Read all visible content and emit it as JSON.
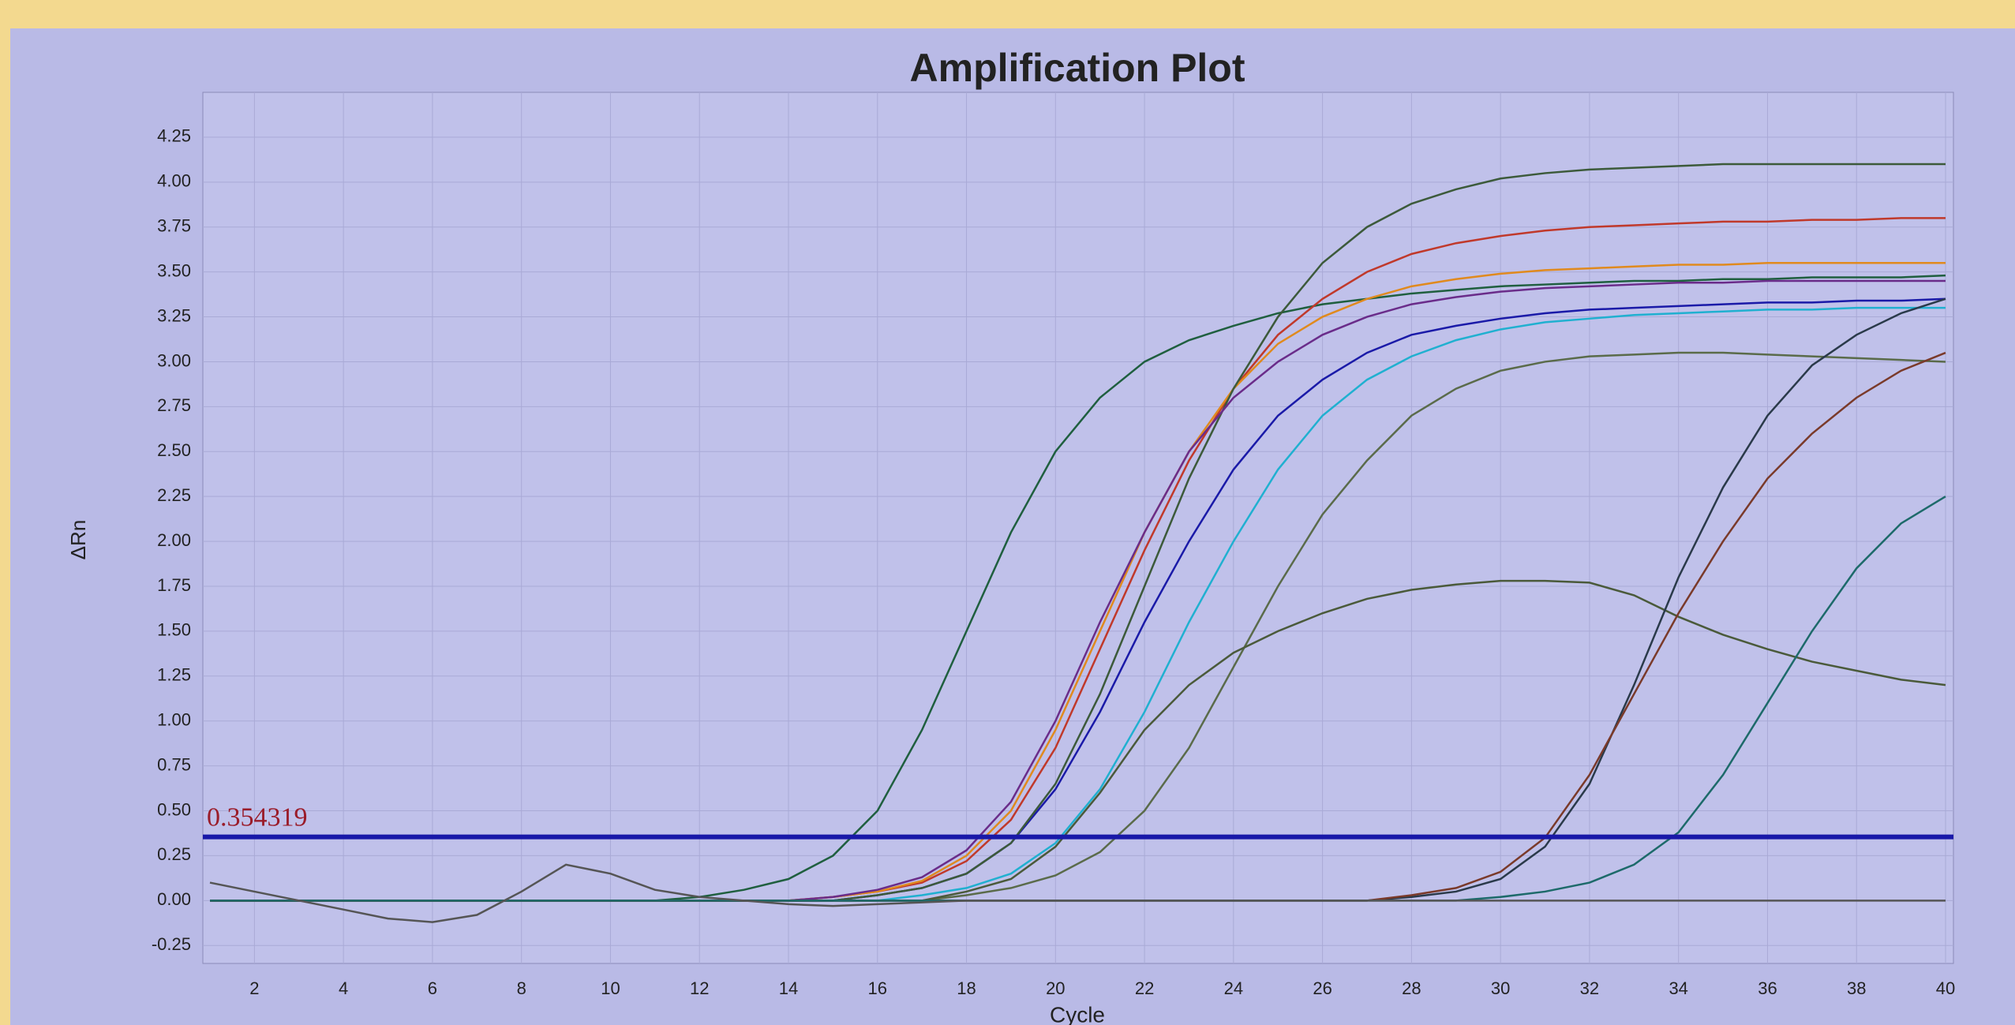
{
  "chart_data": {
    "type": "line",
    "title": "Amplification Plot",
    "xlabel": "Cycle",
    "ylabel": "ΔRn",
    "x": [
      1,
      2,
      3,
      4,
      5,
      6,
      7,
      8,
      9,
      10,
      11,
      12,
      13,
      14,
      15,
      16,
      17,
      18,
      19,
      20,
      21,
      22,
      23,
      24,
      25,
      26,
      27,
      28,
      29,
      30,
      31,
      32,
      33,
      34,
      35,
      36,
      37,
      38,
      39,
      40
    ],
    "xlim": [
      1,
      40
    ],
    "ylim": [
      -0.35,
      4.5
    ],
    "xticks": [
      2,
      4,
      6,
      8,
      10,
      12,
      14,
      16,
      18,
      20,
      22,
      24,
      26,
      28,
      30,
      32,
      34,
      36,
      38,
      40
    ],
    "yticks": [
      -0.25,
      {
        "value": 0,
        "label": "0.00"
      },
      0.25,
      {
        "value": 0.5,
        "label": "0.50"
      },
      0.75,
      {
        "value": 1,
        "label": "1.00"
      },
      1.25,
      {
        "value": 1.5,
        "label": "1.50"
      },
      1.75,
      {
        "value": 2,
        "label": "2.00"
      },
      2.25,
      {
        "value": 2.5,
        "label": "2.50"
      },
      2.75,
      {
        "value": 3,
        "label": "3.00"
      },
      3.25,
      {
        "value": 3.5,
        "label": "3.50"
      },
      3.75,
      {
        "value": 4,
        "label": "4.00"
      },
      4.25
    ],
    "grid": true,
    "threshold": 0.354319,
    "threshold_color": "#1818a8",
    "series": [
      {
        "color": "#1f5f3f",
        "values": [
          0,
          0,
          0,
          0,
          0,
          0,
          0,
          0,
          0,
          0,
          0,
          0.02,
          0.06,
          0.12,
          0.25,
          0.5,
          0.95,
          1.5,
          2.05,
          2.5,
          2.8,
          3.0,
          3.12,
          3.2,
          3.27,
          3.32,
          3.35,
          3.38,
          3.4,
          3.42,
          3.43,
          3.44,
          3.45,
          3.45,
          3.46,
          3.46,
          3.47,
          3.47,
          3.47,
          3.48
        ]
      },
      {
        "color": "#c0392b",
        "values": [
          0,
          0,
          0,
          0,
          0,
          0,
          0,
          0,
          0,
          0,
          0,
          0,
          0,
          0,
          0.02,
          0.05,
          0.1,
          0.22,
          0.45,
          0.85,
          1.4,
          1.95,
          2.45,
          2.85,
          3.15,
          3.35,
          3.5,
          3.6,
          3.66,
          3.7,
          3.73,
          3.75,
          3.76,
          3.77,
          3.78,
          3.78,
          3.79,
          3.79,
          3.8,
          3.8
        ]
      },
      {
        "color": "#1a1aa8",
        "values": [
          0,
          0,
          0,
          0,
          0,
          0,
          0,
          0,
          0,
          0,
          0,
          0,
          0,
          0,
          0,
          0.03,
          0.07,
          0.15,
          0.32,
          0.62,
          1.05,
          1.55,
          2.0,
          2.4,
          2.7,
          2.9,
          3.05,
          3.15,
          3.2,
          3.24,
          3.27,
          3.29,
          3.3,
          3.31,
          3.32,
          3.33,
          3.33,
          3.34,
          3.34,
          3.35
        ]
      },
      {
        "color": "#20b0d0",
        "values": [
          0,
          0,
          0,
          0,
          0,
          0,
          0,
          0,
          0,
          0,
          0,
          0,
          0,
          0,
          0,
          0,
          0.03,
          0.07,
          0.15,
          0.32,
          0.62,
          1.05,
          1.55,
          2.0,
          2.4,
          2.7,
          2.9,
          3.03,
          3.12,
          3.18,
          3.22,
          3.24,
          3.26,
          3.27,
          3.28,
          3.29,
          3.29,
          3.3,
          3.3,
          3.3
        ]
      },
      {
        "color": "#e08a1e",
        "values": [
          0,
          0,
          0,
          0,
          0,
          0,
          0,
          0,
          0,
          0,
          0,
          0,
          0,
          0,
          0.02,
          0.05,
          0.11,
          0.25,
          0.5,
          0.95,
          1.5,
          2.05,
          2.5,
          2.85,
          3.1,
          3.25,
          3.35,
          3.42,
          3.46,
          3.49,
          3.51,
          3.52,
          3.53,
          3.54,
          3.54,
          3.55,
          3.55,
          3.55,
          3.55,
          3.55
        ]
      },
      {
        "color": "#3c5a3a",
        "values": [
          0,
          0,
          0,
          0,
          0,
          0,
          0,
          0,
          0,
          0,
          0,
          0,
          0,
          0,
          0,
          0.03,
          0.07,
          0.15,
          0.32,
          0.65,
          1.15,
          1.75,
          2.35,
          2.85,
          3.25,
          3.55,
          3.75,
          3.88,
          3.96,
          4.02,
          4.05,
          4.07,
          4.08,
          4.09,
          4.1,
          4.1,
          4.1,
          4.1,
          4.1,
          4.1
        ]
      },
      {
        "color": "#6a2c8a",
        "values": [
          0,
          0,
          0,
          0,
          0,
          0,
          0,
          0,
          0,
          0,
          0,
          0,
          0,
          0,
          0.02,
          0.06,
          0.13,
          0.28,
          0.55,
          1.0,
          1.55,
          2.05,
          2.5,
          2.8,
          3.0,
          3.15,
          3.25,
          3.32,
          3.36,
          3.39,
          3.41,
          3.42,
          3.43,
          3.44,
          3.44,
          3.45,
          3.45,
          3.45,
          3.45,
          3.45
        ]
      },
      {
        "color": "#5a6b4a",
        "values": [
          0,
          0,
          0,
          0,
          0,
          0,
          0,
          0,
          0,
          0,
          0,
          0,
          0,
          0,
          0,
          0,
          0,
          0.03,
          0.07,
          0.14,
          0.27,
          0.5,
          0.85,
          1.3,
          1.75,
          2.15,
          2.45,
          2.7,
          2.85,
          2.95,
          3.0,
          3.03,
          3.04,
          3.05,
          3.05,
          3.04,
          3.03,
          3.02,
          3.01,
          3.0
        ]
      },
      {
        "color": "#4a5a3a",
        "values": [
          0,
          0,
          0,
          0,
          0,
          0,
          0,
          0,
          0,
          0,
          0,
          0,
          0,
          0,
          0,
          0,
          0,
          0.05,
          0.12,
          0.3,
          0.6,
          0.95,
          1.2,
          1.38,
          1.5,
          1.6,
          1.68,
          1.73,
          1.76,
          1.78,
          1.78,
          1.77,
          1.7,
          1.58,
          1.48,
          1.4,
          1.33,
          1.28,
          1.23,
          1.2
        ]
      },
      {
        "color": "#2a3a4a",
        "values": [
          0,
          0,
          0,
          0,
          0,
          0,
          0,
          0,
          0,
          0,
          0,
          0,
          0,
          0,
          0,
          0,
          0,
          0,
          0,
          0,
          0,
          0,
          0,
          0,
          0,
          0,
          0,
          0.02,
          0.05,
          0.12,
          0.3,
          0.65,
          1.2,
          1.8,
          2.3,
          2.7,
          2.98,
          3.15,
          3.27,
          3.35
        ]
      },
      {
        "color": "#7a3a2a",
        "values": [
          0,
          0,
          0,
          0,
          0,
          0,
          0,
          0,
          0,
          0,
          0,
          0,
          0,
          0,
          0,
          0,
          0,
          0,
          0,
          0,
          0,
          0,
          0,
          0,
          0,
          0,
          0,
          0.03,
          0.07,
          0.16,
          0.35,
          0.7,
          1.15,
          1.6,
          2.0,
          2.35,
          2.6,
          2.8,
          2.95,
          3.05
        ]
      },
      {
        "color": "#1d6a6a",
        "values": [
          0,
          0,
          0,
          0,
          0,
          0,
          0,
          0,
          0,
          0,
          0,
          0,
          0,
          0,
          0,
          0,
          0,
          0,
          0,
          0,
          0,
          0,
          0,
          0,
          0,
          0,
          0,
          0,
          0,
          0.02,
          0.05,
          0.1,
          0.2,
          0.38,
          0.7,
          1.1,
          1.5,
          1.85,
          2.1,
          2.25
        ]
      },
      {
        "color": "#555555",
        "values": [
          0.1,
          0.05,
          0,
          -0.05,
          -0.1,
          -0.12,
          -0.08,
          0.05,
          0.2,
          0.15,
          0.06,
          0.02,
          0,
          -0.02,
          -0.03,
          -0.02,
          -0.01,
          0,
          0,
          0,
          0,
          0,
          0,
          0,
          0,
          0,
          0,
          0,
          0,
          0,
          0,
          0,
          0,
          0,
          0,
          0,
          0,
          0,
          0,
          0
        ]
      }
    ]
  }
}
